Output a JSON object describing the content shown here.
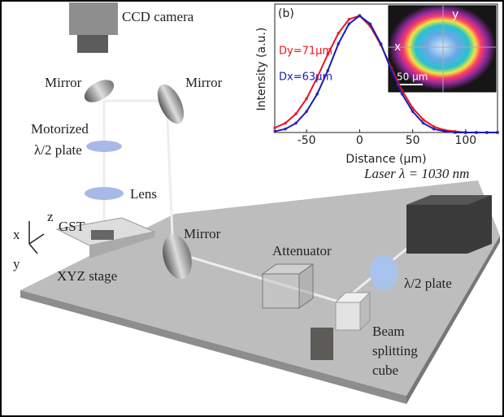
{
  "labels": {
    "ccd_camera": "CCD camera",
    "mirror_top_left": "Mirror",
    "mirror_top_right": "Mirror",
    "waveplate_top": [
      "Motorized",
      "λ/2 plate"
    ],
    "lens": "Lens",
    "sample": "GST",
    "stage": "XYZ stage",
    "mirror_bottom": "Mirror",
    "attenuator": "Attenuator",
    "laser": "Laser λ = 1030 nm",
    "waveplate": "λ/2 plate",
    "beam_splitter": [
      "Beam",
      "splitting",
      "cube"
    ]
  },
  "axes": {
    "x": "x",
    "y": "y",
    "z": "z"
  },
  "chart_data": {
    "type": "line",
    "panel_label": "(b)",
    "y_label": "Intensity (a.u.)",
    "x_label": "Distance (μm)",
    "x": [
      -80,
      -70,
      -60,
      -50,
      -40,
      -30,
      -20,
      -10,
      0,
      10,
      20,
      30,
      40,
      50,
      60,
      70,
      80,
      90,
      100,
      110,
      120,
      130
    ],
    "xlim": [
      -80,
      130
    ],
    "xticks": [
      -50,
      0,
      50,
      100
    ],
    "ylim": [
      0,
      1.1
    ],
    "series": [
      {
        "name": "Dy=71μm",
        "color": "#e8141b",
        "values": [
          0.04,
          0.08,
          0.16,
          0.29,
          0.47,
          0.67,
          0.85,
          0.97,
          1.0,
          0.91,
          0.75,
          0.55,
          0.36,
          0.21,
          0.11,
          0.05,
          0.02,
          0.01,
          0,
          0,
          0,
          0
        ]
      },
      {
        "name": "Dx=63μm",
        "color": "#1a1ab8",
        "values": [
          0.01,
          0.03,
          0.08,
          0.18,
          0.33,
          0.53,
          0.76,
          0.93,
          1.0,
          0.93,
          0.76,
          0.53,
          0.33,
          0.18,
          0.08,
          0.03,
          0.01,
          0,
          0,
          0,
          0,
          0
        ]
      }
    ],
    "image_labels": {
      "x": "x",
      "y": "y",
      "scale": "50 μm"
    }
  }
}
